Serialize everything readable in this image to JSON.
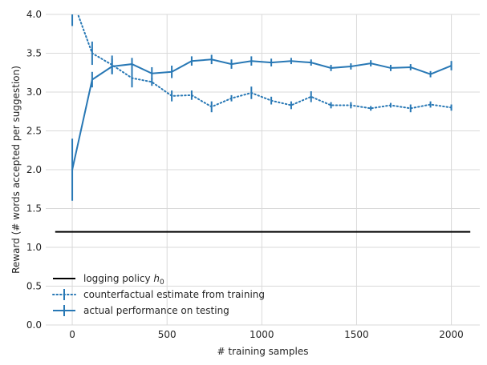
{
  "chart_data": {
    "type": "line",
    "xlabel": "# training samples",
    "ylabel": "Reward (# words accepted per suggestion)",
    "xlim": [
      -140,
      2150
    ],
    "ylim": [
      0.0,
      4.0
    ],
    "xticks": [
      0,
      500,
      1000,
      1500,
      2000
    ],
    "yticks": [
      0.0,
      0.5,
      1.0,
      1.5,
      2.0,
      2.5,
      3.0,
      3.5,
      4.0
    ],
    "grid": true,
    "legend_position": "lower-left",
    "colors": {
      "series": "#2878b5",
      "baseline": "#000000",
      "grid": "#d9d9d9"
    },
    "baseline": {
      "name_main": "logging policy ",
      "name_math": "h",
      "name_sub": "0",
      "x": [
        -90,
        2100
      ],
      "y": [
        1.2,
        1.2
      ]
    },
    "series": [
      {
        "name": "counterfactual estimate from training",
        "style": "dotted",
        "x": [
          0,
          105,
          210,
          315,
          420,
          525,
          630,
          735,
          840,
          945,
          1050,
          1155,
          1260,
          1365,
          1470,
          1575,
          1680,
          1785,
          1890,
          2000
        ],
        "y": [
          4.2,
          3.5,
          3.35,
          3.18,
          3.13,
          2.95,
          2.96,
          2.81,
          2.92,
          2.99,
          2.89,
          2.83,
          2.94,
          2.83,
          2.83,
          2.79,
          2.83,
          2.79,
          2.84,
          2.8
        ],
        "err": [
          0.35,
          0.15,
          0.12,
          0.12,
          0.05,
          0.07,
          0.06,
          0.07,
          0.04,
          0.08,
          0.05,
          0.05,
          0.07,
          0.04,
          0.04,
          0.03,
          0.03,
          0.05,
          0.04,
          0.04
        ]
      },
      {
        "name": "actual performance on testing",
        "style": "solid",
        "x": [
          0,
          105,
          210,
          315,
          420,
          525,
          630,
          735,
          840,
          945,
          1050,
          1155,
          1260,
          1365,
          1470,
          1575,
          1680,
          1785,
          1890,
          2000
        ],
        "y": [
          2.0,
          3.16,
          3.33,
          3.36,
          3.24,
          3.26,
          3.4,
          3.42,
          3.36,
          3.4,
          3.38,
          3.4,
          3.38,
          3.31,
          3.33,
          3.37,
          3.31,
          3.32,
          3.23,
          3.34
        ],
        "err": [
          0.4,
          0.1,
          0.1,
          0.08,
          0.08,
          0.08,
          0.06,
          0.06,
          0.06,
          0.06,
          0.05,
          0.04,
          0.04,
          0.04,
          0.04,
          0.04,
          0.04,
          0.04,
          0.04,
          0.06
        ]
      }
    ]
  }
}
